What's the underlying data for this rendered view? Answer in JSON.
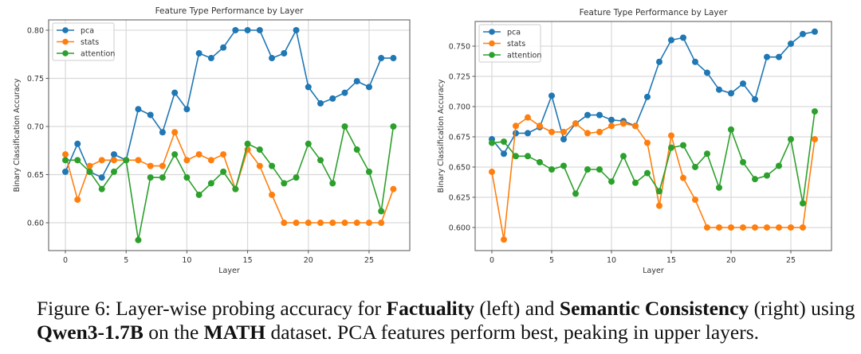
{
  "chart_data": [
    {
      "type": "line",
      "title": "Feature Type Performance by Layer",
      "xlabel": "Layer",
      "ylabel": "Binary Classification Accuracy",
      "xlim": [
        -1.38,
        28.35
      ],
      "ylim": [
        0.5711,
        0.8107
      ],
      "xticks": [
        0,
        5,
        10,
        15,
        20,
        25
      ],
      "yticks": [
        0.6,
        0.65,
        0.7,
        0.75,
        0.8
      ],
      "ytick_labels": [
        "0.60",
        "0.65",
        "0.70",
        "0.75",
        "0.80"
      ],
      "grid": true,
      "legend_position": "top-left",
      "x": [
        0,
        1,
        2,
        3,
        4,
        5,
        6,
        7,
        8,
        9,
        10,
        11,
        12,
        13,
        14,
        15,
        16,
        17,
        18,
        19,
        20,
        21,
        22,
        23,
        24,
        25,
        26,
        27
      ],
      "series": [
        {
          "name": "pca",
          "color": "#1f77b4",
          "values": [
            0.653,
            0.682,
            0.653,
            0.647,
            0.671,
            0.665,
            0.718,
            0.712,
            0.694,
            0.735,
            0.718,
            0.776,
            0.771,
            0.782,
            0.8,
            0.8,
            0.8,
            0.771,
            0.776,
            0.8,
            0.741,
            0.724,
            0.729,
            0.735,
            0.747,
            0.741,
            0.771,
            0.771
          ]
        },
        {
          "name": "stats",
          "color": "#ff7f0e",
          "values": [
            0.671,
            0.624,
            0.659,
            0.665,
            0.665,
            0.665,
            0.665,
            0.659,
            0.659,
            0.694,
            0.665,
            0.671,
            0.665,
            0.671,
            0.635,
            0.676,
            0.659,
            0.629,
            0.6,
            0.6,
            0.6,
            0.6,
            0.6,
            0.6,
            0.6,
            0.6,
            0.6,
            0.635
          ]
        },
        {
          "name": "attention",
          "color": "#2ca02c",
          "values": [
            0.665,
            0.665,
            0.653,
            0.635,
            0.653,
            0.665,
            0.582,
            0.647,
            0.647,
            0.671,
            0.647,
            0.629,
            0.641,
            0.653,
            0.635,
            0.682,
            0.676,
            0.659,
            0.641,
            0.647,
            0.682,
            0.665,
            0.641,
            0.7,
            0.676,
            0.653,
            0.612,
            0.7
          ]
        }
      ]
    },
    {
      "type": "line",
      "title": "Feature Type Performance by Layer",
      "xlabel": "Layer",
      "ylabel": "Binary Classification Accuracy",
      "xlim": [
        -1.4,
        28.4
      ],
      "ylim": [
        0.5809,
        0.7704
      ],
      "xticks": [
        0,
        5,
        10,
        15,
        20,
        25
      ],
      "yticks": [
        0.6,
        0.625,
        0.65,
        0.675,
        0.7,
        0.725,
        0.75
      ],
      "ytick_labels": [
        "0.600",
        "0.625",
        "0.650",
        "0.675",
        "0.700",
        "0.725",
        "0.750"
      ],
      "grid": true,
      "legend_position": "top-left",
      "x": [
        0,
        1,
        2,
        3,
        4,
        5,
        6,
        7,
        8,
        9,
        10,
        11,
        12,
        13,
        14,
        15,
        16,
        17,
        18,
        19,
        20,
        21,
        22,
        23,
        24,
        25,
        26,
        27
      ],
      "series": [
        {
          "name": "pca",
          "color": "#1f77b4",
          "values": [
            0.673,
            0.661,
            0.678,
            0.678,
            0.683,
            0.709,
            0.673,
            0.686,
            0.693,
            0.693,
            0.689,
            0.688,
            0.684,
            0.708,
            0.737,
            0.755,
            0.757,
            0.737,
            0.728,
            0.714,
            0.711,
            0.719,
            0.706,
            0.741,
            0.741,
            0.752,
            0.76,
            0.762
          ]
        },
        {
          "name": "stats",
          "color": "#ff7f0e",
          "values": [
            0.646,
            0.59,
            0.684,
            0.691,
            0.684,
            0.679,
            0.679,
            0.686,
            0.678,
            0.679,
            0.684,
            0.686,
            0.684,
            0.67,
            0.618,
            0.676,
            0.641,
            0.623,
            0.6,
            0.6,
            0.6,
            0.6,
            0.6,
            0.6,
            0.6,
            0.6,
            0.6,
            0.673
          ]
        },
        {
          "name": "attention",
          "color": "#2ca02c",
          "values": [
            0.67,
            0.671,
            0.659,
            0.659,
            0.654,
            0.648,
            0.651,
            0.628,
            0.648,
            0.648,
            0.638,
            0.659,
            0.637,
            0.645,
            0.63,
            0.666,
            0.668,
            0.65,
            0.661,
            0.633,
            0.681,
            0.654,
            0.64,
            0.643,
            0.651,
            0.673,
            0.62,
            0.696
          ]
        }
      ]
    }
  ],
  "caption": {
    "label": "Figure 6:",
    "text1": " Layer-wise probing accuracy for ",
    "bold1": "Factuality",
    "text2": " (left) and ",
    "bold2": "Semantic Consistency",
    "text3": " (right) using",
    "bold3": "Qwen3-1.7B",
    "text4": " on the ",
    "bold4": "MATH",
    "text5": " dataset. PCA features perform best, peaking in upper layers."
  }
}
